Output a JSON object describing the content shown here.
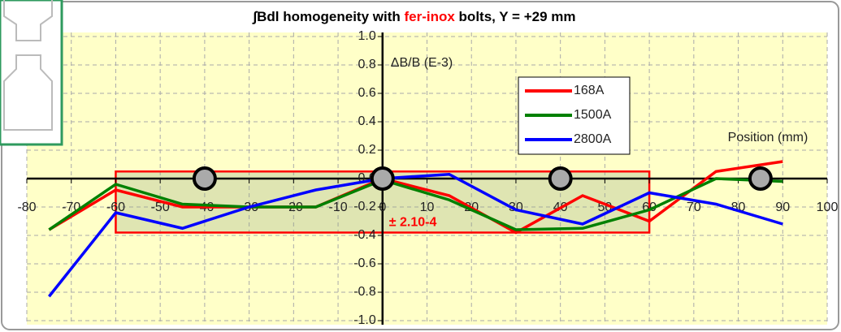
{
  "chart_data": {
    "type": "line",
    "title_parts": [
      "∫Bdl homogeneity with ",
      "fer-inox",
      " bolts, Y = +29 mm"
    ],
    "title_colors": [
      "#000000",
      "#ff0000",
      "#000000"
    ],
    "y_label": "ΔB/B (E-3)",
    "x_label": "Position (mm)",
    "x": [
      -75,
      -60,
      -45,
      -30,
      -15,
      0,
      15,
      30,
      45,
      60,
      75,
      90
    ],
    "series": [
      {
        "name": "168A",
        "color": "#ff0000",
        "values": [
          -0.36,
          -0.08,
          -0.2,
          -0.2,
          -0.2,
          0.0,
          -0.12,
          -0.38,
          -0.12,
          -0.3,
          0.05,
          0.12
        ]
      },
      {
        "name": "1500A",
        "color": "#008000",
        "values": [
          -0.36,
          -0.04,
          -0.18,
          -0.2,
          -0.2,
          -0.01,
          -0.15,
          -0.36,
          -0.35,
          -0.22,
          0.0,
          -0.02
        ]
      },
      {
        "name": "2800A",
        "color": "#0000ff",
        "values": [
          -0.83,
          -0.24,
          -0.35,
          -0.2,
          -0.08,
          0.0,
          0.03,
          -0.22,
          -0.32,
          -0.1,
          -0.18,
          -0.32
        ]
      }
    ],
    "bolts": [
      -40,
      0,
      40,
      85
    ],
    "box": {
      "x": [
        -60,
        60
      ],
      "y": [
        -0.38,
        0.05
      ],
      "label": "± 2.10-4",
      "color": "#ff0000"
    },
    "xlim": [
      -80,
      100
    ],
    "ylim": [
      -1.0,
      1.0
    ],
    "xticks": [
      -80,
      -70,
      -60,
      -50,
      -40,
      -30,
      -20,
      -10,
      0,
      10,
      20,
      30,
      40,
      50,
      60,
      70,
      80,
      90,
      100
    ],
    "yticks": [
      {
        "value": -1.0,
        "label": "-1.0"
      },
      -0.8,
      -0.6,
      -0.4,
      -0.2,
      {
        "value": 0.0,
        "label": "0.0"
      },
      0.2,
      0.4,
      0.6,
      0.8,
      {
        "value": 1.0,
        "label": "1.0"
      }
    ],
    "grid": true
  }
}
